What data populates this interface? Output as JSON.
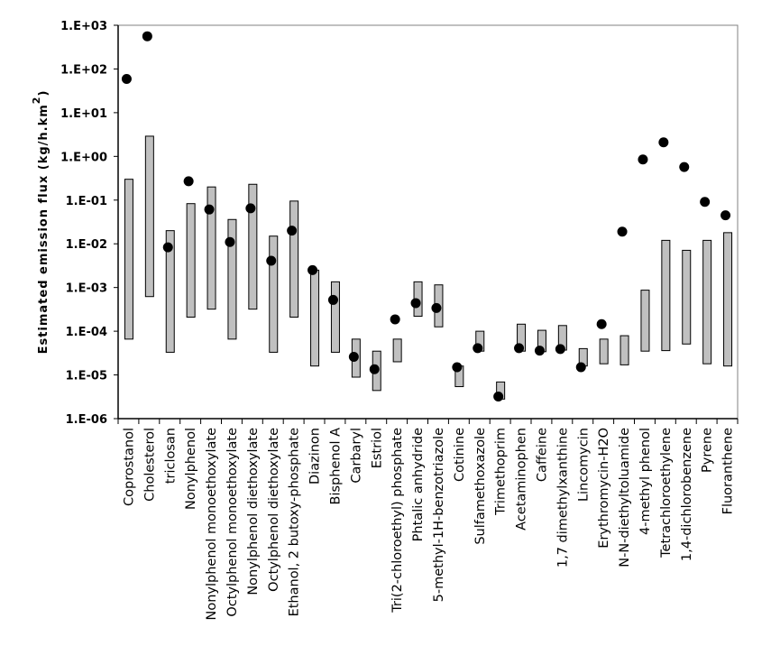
{
  "chart_data": {
    "type": "range-bar-with-points",
    "title": "",
    "ylabel": "Estimated emission flux (kg/h.km",
    "ylabel_superscript": "2",
    "ylabel_close": ")",
    "yscale": "log",
    "ylim": [
      1e-06,
      1000
    ],
    "yticks": [
      {
        "value": 1000,
        "label": "1.E+03"
      },
      {
        "value": 100,
        "label": "1.E+02"
      },
      {
        "value": 10,
        "label": "1.E+01"
      },
      {
        "value": 1,
        "label": "1.E+00"
      },
      {
        "value": 0.1,
        "label": "1.E-01"
      },
      {
        "value": 0.01,
        "label": "1.E-02"
      },
      {
        "value": 0.001,
        "label": "1.E-03"
      },
      {
        "value": 0.0001,
        "label": "1.E-04"
      },
      {
        "value": 1e-05,
        "label": "1.E-05"
      },
      {
        "value": 1e-06,
        "label": "1.E-06"
      }
    ],
    "grid": false,
    "colors": {
      "bar_fill": "#c0c0c0",
      "bar_stroke": "#000000",
      "point": "#000000"
    },
    "categories": [
      "Coprostanol",
      "Cholesterol",
      "triclosan",
      "Nonylphenol",
      "Nonylphenol monoethoxylate",
      "Octylphenol monoethoxylate",
      "Nonylphenol diethoxylate",
      "Octylphenol diethoxylate",
      "Ethanol, 2 butoxy-phosphate",
      "Diazinon",
      "Bisphenol  A",
      "Carbaryl",
      "Estriol",
      "Tri(2-chloroethyl) phosphate",
      "Phtalic anhydride",
      "5-methyl-1H-benzotriazole",
      "Cotinine",
      "Sulfamethoxazole",
      "Trimethoprim",
      "Acetaminophen",
      "Caffeine",
      "1,7 dimethylxanthine",
      "Lincomycin",
      "Erythromycin-H2O",
      "N-N-diethyltoluamide",
      "4-methyl phenol",
      "Tetrachloroethylene",
      "1,4-dichlorobenzene",
      "Pyrene",
      "Fluoranthene"
    ],
    "series": [
      {
        "name": "range_low",
        "values": [
          6.6e-05,
          0.00062,
          3.3e-05,
          0.00021,
          0.00032,
          6.6e-05,
          0.00032,
          3.3e-05,
          0.00021,
          1.6e-05,
          3.3e-05,
          8.9e-06,
          4.4e-06,
          2e-05,
          0.00022,
          0.000126,
          5.4e-06,
          3.5e-05,
          2.8e-06,
          3.5e-05,
          3.4e-05,
          3.7e-05,
          1.6e-05,
          1.8e-05,
          1.7e-05,
          3.5e-05,
          3.6e-05,
          5.1e-05,
          1.8e-05,
          1.6e-05
        ]
      },
      {
        "name": "range_high",
        "values": [
          0.3,
          2.9,
          0.02,
          0.083,
          0.2,
          0.036,
          0.23,
          0.015,
          0.095,
          0.0025,
          0.00135,
          6.6e-05,
          3.5e-05,
          6.6e-05,
          0.00135,
          0.00115,
          1.6e-05,
          0.0001,
          6.9e-06,
          0.000145,
          0.000105,
          0.000135,
          4e-05,
          6.6e-05,
          7.9e-05,
          0.00087,
          0.012,
          0.0071,
          0.012,
          0.018
        ]
      },
      {
        "name": "point",
        "values": [
          59,
          560,
          0.0083,
          0.27,
          0.061,
          0.011,
          0.065,
          0.0041,
          0.02,
          0.0025,
          0.00052,
          2.6e-05,
          1.35e-05,
          0.000187,
          0.00044,
          0.00034,
          1.5e-05,
          4.1e-05,
          3.2e-06,
          4.1e-05,
          3.6e-05,
          3.9e-05,
          1.5e-05,
          0.000145,
          0.019,
          0.85,
          2.1,
          0.57,
          0.091,
          0.045
        ]
      }
    ]
  }
}
